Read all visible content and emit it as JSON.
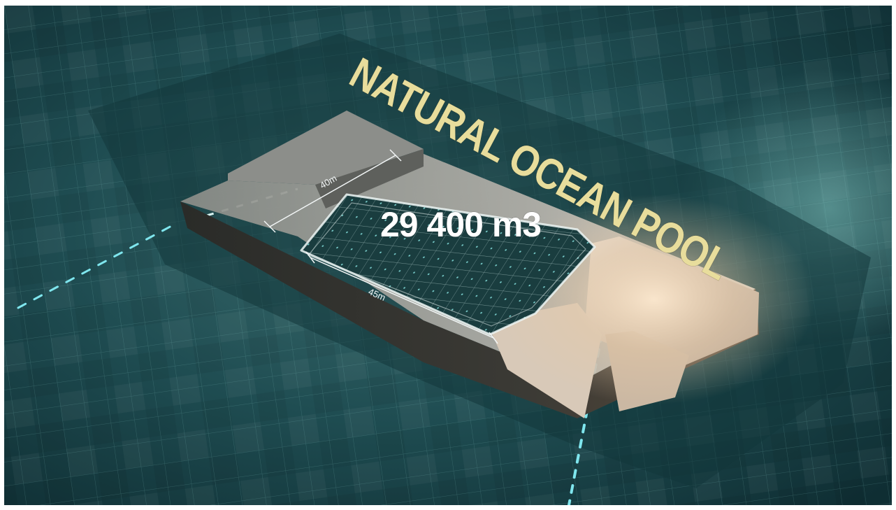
{
  "image": {
    "title": "NATURAL OCEAN POOL",
    "volume": "29 400 m3",
    "dimensions": {
      "width": "40m",
      "length": "45m"
    }
  },
  "colors": {
    "title": "#e8dd9c",
    "volume": "#ffffff",
    "water": "#1e4a4f",
    "grid": "#7fc6c3",
    "glow": "#f4dcc0",
    "inlet": "#7fe6ee"
  }
}
